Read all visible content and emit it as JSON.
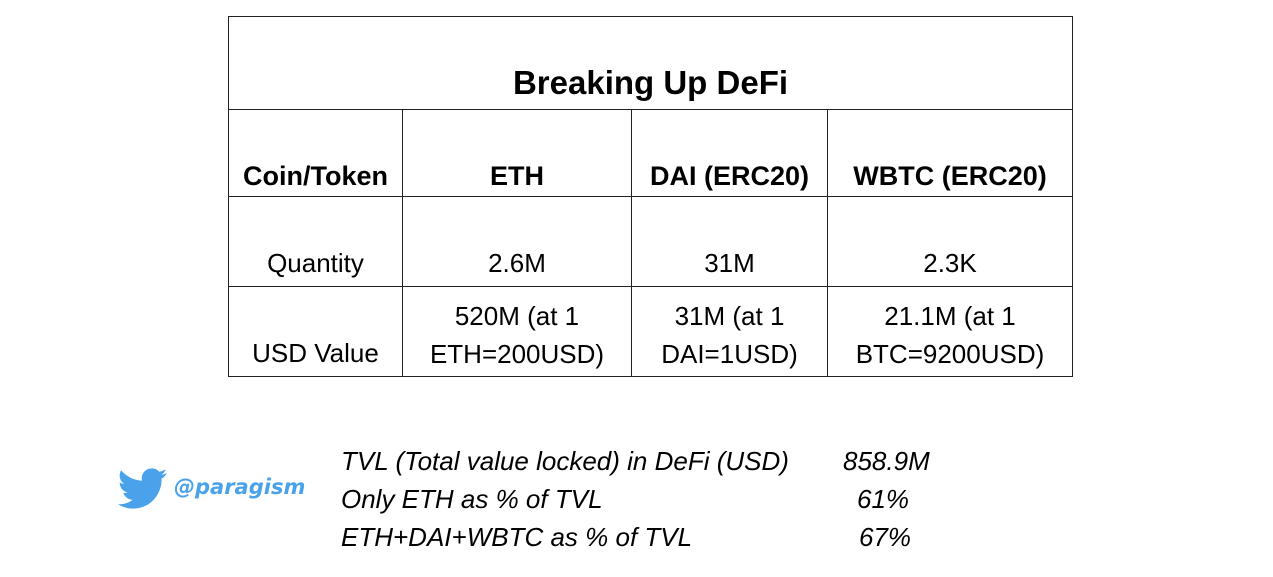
{
  "table": {
    "title": "Breaking Up DeFi",
    "headers": [
      "Coin/Token",
      "ETH",
      "DAI (ERC20)",
      "WBTC (ERC20)"
    ],
    "quantity_row": [
      "Quantity",
      "2.6M",
      "31M",
      "2.3K"
    ],
    "usd_row": {
      "label": "USD Value",
      "cells": [
        {
          "line1": "520M (at 1",
          "line2": "ETH=200USD)"
        },
        {
          "line1": "31M (at 1",
          "line2": "DAI=1USD)"
        },
        {
          "line1": "21.1M (at 1",
          "line2": "BTC=9200USD)"
        }
      ]
    }
  },
  "footer": {
    "handle": "@paragism",
    "icon": "twitter-bird-icon",
    "brand_color": "#4aa2ea",
    "stats": [
      {
        "label": "TVL (Total value locked) in DeFi (USD)",
        "value": "858.9M"
      },
      {
        "label": "Only ETH as % of TVL",
        "value": "61%"
      },
      {
        "label": "ETH+DAI+WBTC as % of TVL",
        "value": "67%"
      }
    ]
  }
}
